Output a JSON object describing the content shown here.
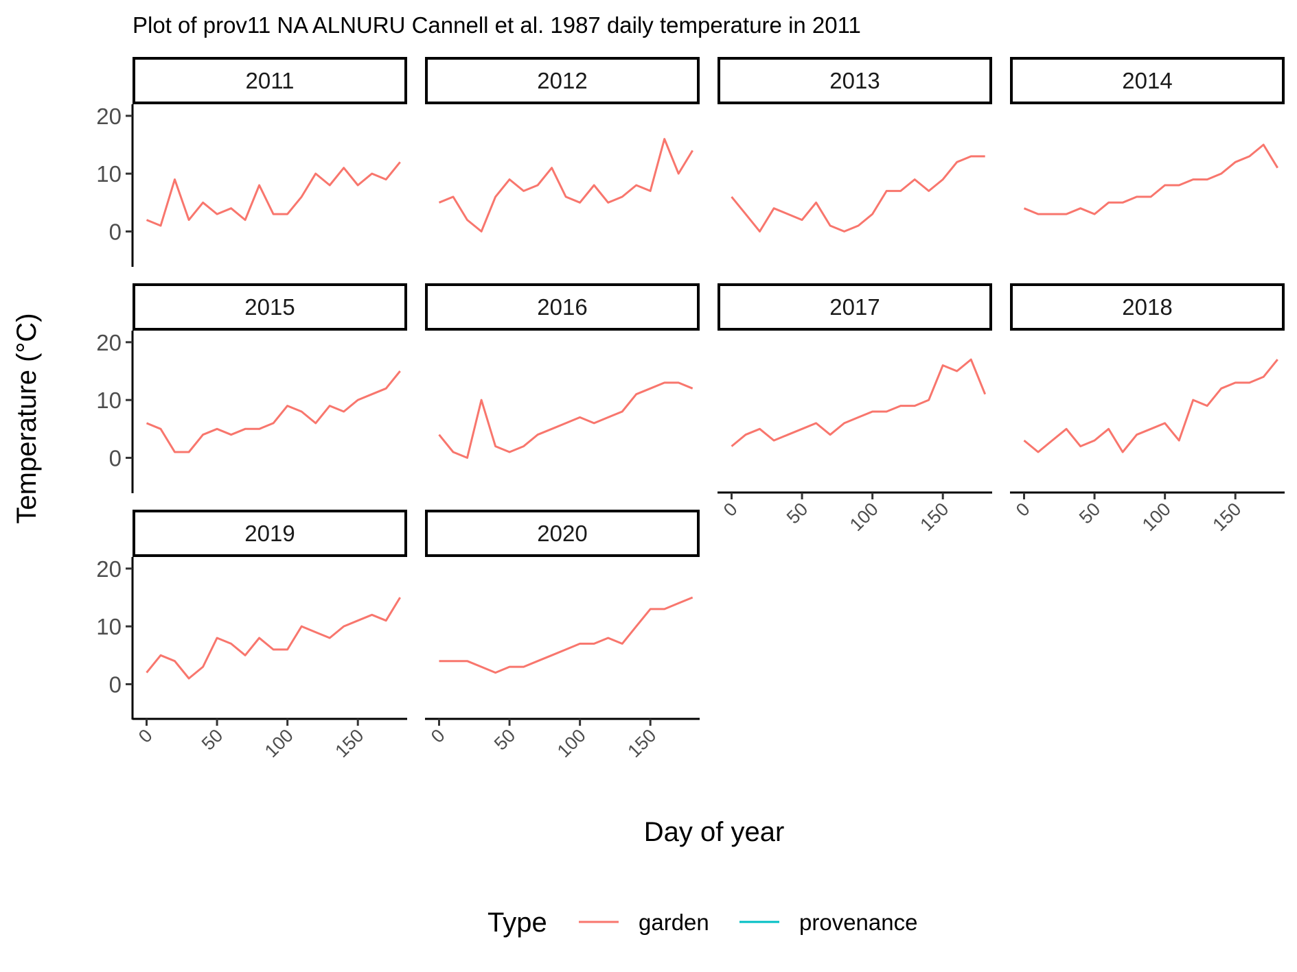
{
  "chart_data": {
    "type": "line",
    "title": "Plot of prov11 NA ALNURU Cannell et al. 1987 daily temperature in 2011",
    "xlabel": "Day of year",
    "ylabel": "Temperature (°C)",
    "xlim": [
      -10,
      185
    ],
    "ylim": [
      -6,
      22
    ],
    "x_ticks": [
      0,
      50,
      100,
      150
    ],
    "y_ticks": [
      0,
      10,
      20
    ],
    "grid": false,
    "legend": {
      "title": "Type",
      "position": "bottom",
      "entries": [
        {
          "label": "garden",
          "color": "#F8766D"
        },
        {
          "label": "provenance",
          "color": "#00BFC4"
        }
      ]
    },
    "x_step_days": 10,
    "panels": [
      {
        "label": "2011",
        "series": [
          {
            "name": "garden",
            "values": [
              2,
              1,
              9,
              2,
              5,
              3,
              4,
              2,
              8,
              3,
              3,
              6,
              10,
              8,
              11,
              8,
              10,
              9,
              12
            ]
          }
        ]
      },
      {
        "label": "2012",
        "series": [
          {
            "name": "garden",
            "values": [
              5,
              6,
              2,
              0,
              6,
              9,
              7,
              8,
              11,
              6,
              5,
              8,
              5,
              6,
              8,
              7,
              16,
              10,
              14
            ]
          }
        ]
      },
      {
        "label": "2013",
        "series": [
          {
            "name": "garden",
            "values": [
              6,
              3,
              0,
              4,
              3,
              2,
              5,
              1,
              0,
              1,
              3,
              7,
              7,
              9,
              7,
              9,
              12,
              13,
              13
            ]
          }
        ]
      },
      {
        "label": "2014",
        "series": [
          {
            "name": "garden",
            "values": [
              4,
              3,
              3,
              3,
              4,
              3,
              5,
              5,
              6,
              6,
              8,
              8,
              9,
              9,
              10,
              12,
              13,
              15,
              11
            ]
          }
        ]
      },
      {
        "label": "2015",
        "series": [
          {
            "name": "garden",
            "values": [
              6,
              5,
              1,
              1,
              4,
              5,
              4,
              5,
              5,
              6,
              9,
              8,
              6,
              9,
              8,
              10,
              11,
              12,
              15
            ]
          }
        ]
      },
      {
        "label": "2016",
        "series": [
          {
            "name": "garden",
            "values": [
              4,
              1,
              0,
              10,
              2,
              1,
              2,
              4,
              5,
              6,
              7,
              6,
              7,
              8,
              11,
              12,
              13,
              13,
              12
            ]
          }
        ]
      },
      {
        "label": "2017",
        "series": [
          {
            "name": "garden",
            "values": [
              2,
              4,
              5,
              3,
              4,
              5,
              6,
              4,
              6,
              7,
              8,
              8,
              9,
              9,
              10,
              16,
              15,
              17,
              11
            ]
          }
        ]
      },
      {
        "label": "2018",
        "series": [
          {
            "name": "garden",
            "values": [
              3,
              1,
              3,
              5,
              2,
              3,
              5,
              1,
              4,
              5,
              6,
              3,
              10,
              9,
              12,
              13,
              13,
              14,
              17
            ]
          }
        ]
      },
      {
        "label": "2019",
        "series": [
          {
            "name": "garden",
            "values": [
              2,
              5,
              4,
              1,
              3,
              8,
              7,
              5,
              8,
              6,
              6,
              10,
              9,
              8,
              10,
              11,
              12,
              11,
              15
            ]
          }
        ]
      },
      {
        "label": "2020",
        "series": [
          {
            "name": "garden",
            "values": [
              4,
              4,
              4,
              3,
              2,
              3,
              3,
              4,
              5,
              6,
              7,
              7,
              8,
              7,
              10,
              13,
              13,
              14,
              15
            ]
          }
        ]
      }
    ]
  }
}
